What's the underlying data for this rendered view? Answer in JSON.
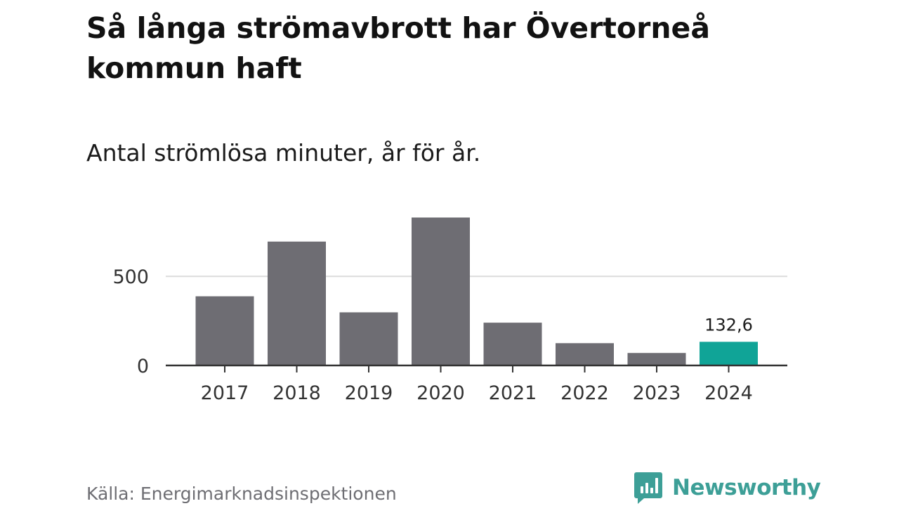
{
  "title": "Så långa strömavbrott har Övertorneå kommun haft",
  "subtitle": "Antal strömlösa minuter, år för år.",
  "source": "Källa: Energimarknadsinspektionen",
  "brand": "Newsworthy",
  "colors": {
    "bar": "#6e6d73",
    "highlight": "#10a497",
    "grid": "#dcdcdc",
    "axis": "#333333",
    "brand": "#3d9f97"
  },
  "chart_data": {
    "type": "bar",
    "title": "Så långa strömavbrott har Övertorneå kommun haft",
    "subtitle": "Antal strömlösa minuter, år för år.",
    "categories": [
      "2017",
      "2018",
      "2019",
      "2020",
      "2021",
      "2022",
      "2023",
      "2024"
    ],
    "values": [
      388,
      695,
      298,
      830,
      240,
      125,
      70,
      132.6
    ],
    "highlight_index": 7,
    "highlight_label": "132,6",
    "yticks": [
      0,
      500
    ],
    "ylim": [
      0,
      900
    ],
    "grid": true,
    "xlabel": "",
    "ylabel": ""
  }
}
